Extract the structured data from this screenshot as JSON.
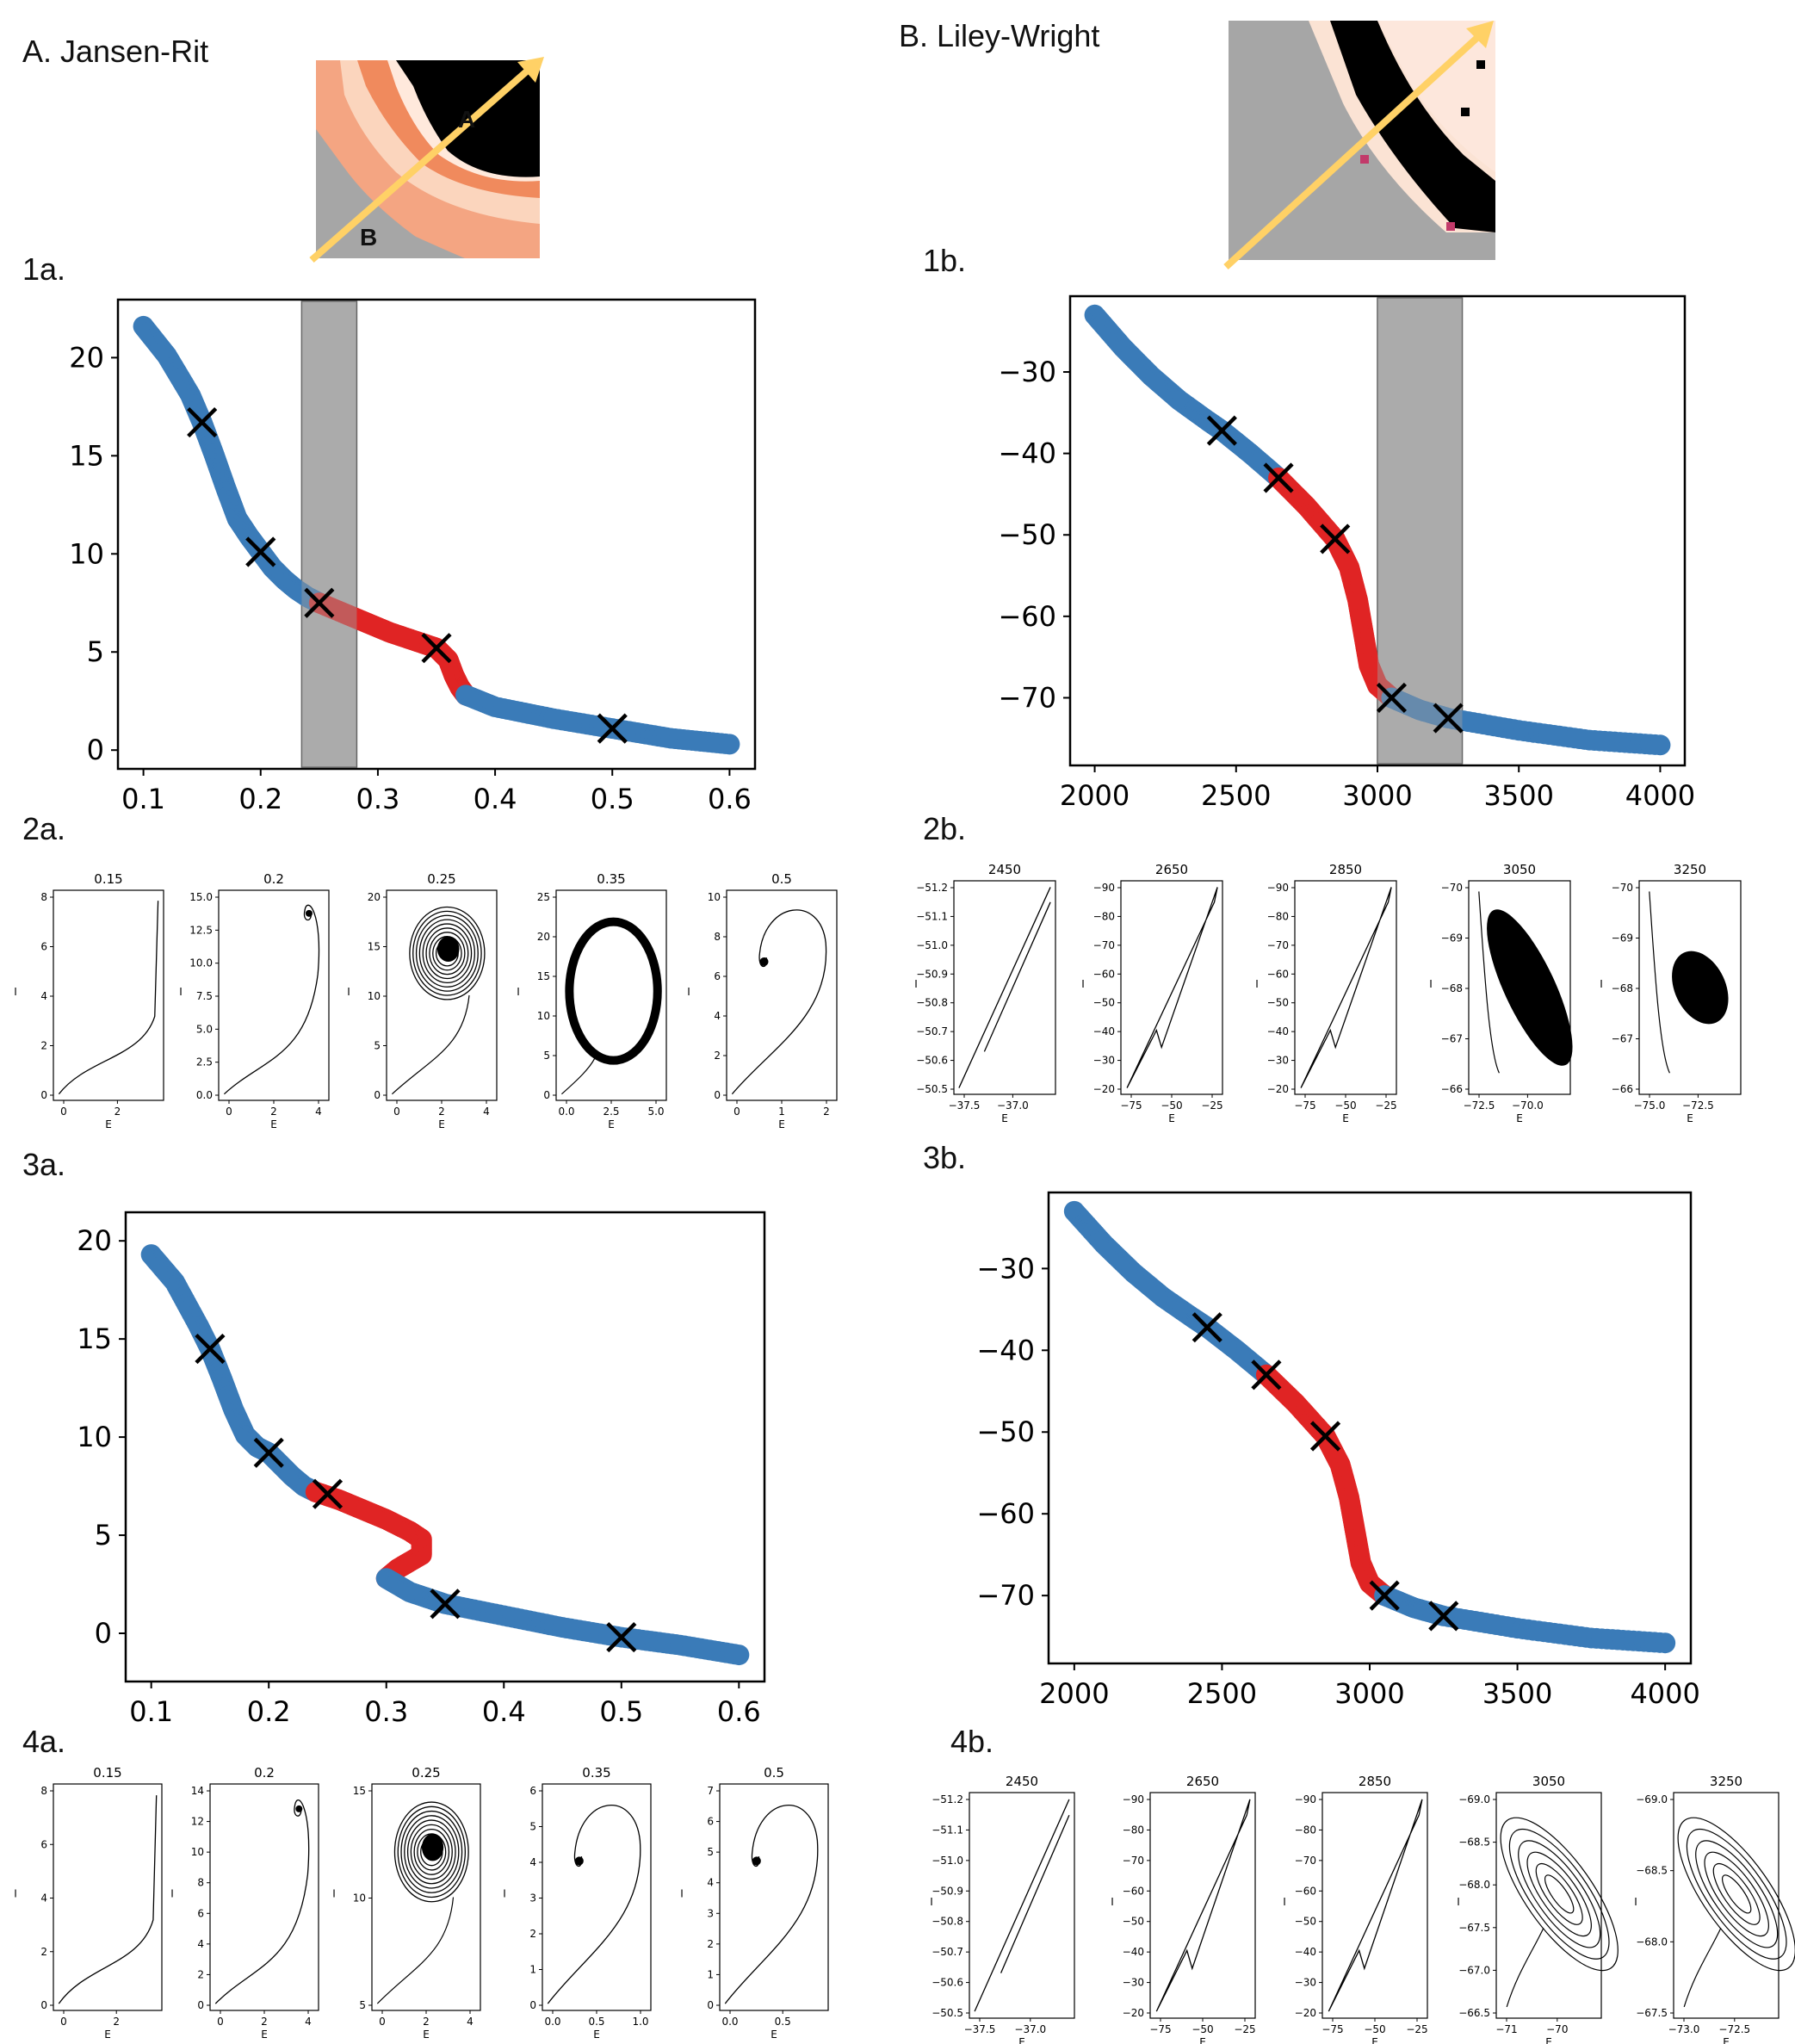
{
  "panel_titles": {
    "A": "A. Jansen-Rit",
    "B": "B. Liley-Wright"
  },
  "panel_labels": [
    "1a.",
    "2a.",
    "3a.",
    "4a.",
    "1b.",
    "2b.",
    "3b.",
    "4b."
  ],
  "heatmap_labels": [
    "A",
    "B"
  ],
  "colors": {
    "stable": "#3a7bb8",
    "unstable": "#e02424",
    "band": "#9e9e9e",
    "arrow": "#ffd166"
  },
  "chart_data": [
    {
      "id": "1a",
      "type": "scatter",
      "xlim": [
        0.1,
        0.6
      ],
      "ylim": [
        0,
        22
      ],
      "xticks": [
        "0.1",
        "0.2",
        "0.3",
        "0.4",
        "0.5",
        "0.6"
      ],
      "yticks": [
        "0",
        "5",
        "10",
        "15",
        "20"
      ],
      "band": [
        0.235,
        0.282
      ],
      "series": [
        {
          "color": "stable",
          "x": [
            0.1,
            0.12,
            0.14,
            0.15,
            0.16,
            0.17,
            0.18,
            0.19,
            0.2,
            0.21,
            0.22,
            0.23,
            0.24,
            0.25
          ],
          "y": [
            21.6,
            20.1,
            18.1,
            16.7,
            15.1,
            13.4,
            11.8,
            10.9,
            10.1,
            9.3,
            8.7,
            8.2,
            7.8,
            7.5
          ]
        },
        {
          "color": "unstable",
          "x": [
            0.25,
            0.27,
            0.29,
            0.31,
            0.33,
            0.35,
            0.36,
            0.365,
            0.37,
            0.375
          ],
          "y": [
            7.5,
            7.0,
            6.5,
            6.0,
            5.6,
            5.2,
            4.6,
            3.8,
            3.2,
            2.8
          ]
        },
        {
          "color": "stable",
          "x": [
            0.375,
            0.4,
            0.45,
            0.5,
            0.55,
            0.6
          ],
          "y": [
            2.8,
            2.2,
            1.6,
            1.1,
            0.6,
            0.3
          ]
        }
      ],
      "markers": {
        "x": [
          0.15,
          0.2,
          0.25,
          0.35,
          0.5
        ],
        "y": [
          16.7,
          10.1,
          7.5,
          5.2,
          1.1
        ]
      }
    },
    {
      "id": "1b",
      "type": "scatter",
      "xlim": [
        2000,
        4000
      ],
      "ylim": [
        -76,
        -23
      ],
      "xticks": [
        "2000",
        "2500",
        "3000",
        "3500",
        "4000"
      ],
      "yticks": [
        "-30",
        "-40",
        "-50",
        "-60",
        "-70"
      ],
      "band": [
        3000,
        3300
      ],
      "series": [
        {
          "color": "stable",
          "x": [
            2000,
            2100,
            2200,
            2300,
            2400,
            2450,
            2550,
            2650
          ],
          "y": [
            -23,
            -27,
            -30.5,
            -33.5,
            -36,
            -37.2,
            -40,
            -43
          ]
        },
        {
          "color": "unstable",
          "x": [
            2650,
            2750,
            2850,
            2900,
            2930,
            2950,
            2970,
            3000,
            3050
          ],
          "y": [
            -43,
            -46.5,
            -50.5,
            -54,
            -58,
            -62,
            -66,
            -68.5,
            -70
          ]
        },
        {
          "color": "stable",
          "x": [
            3050,
            3150,
            3250,
            3500,
            3750,
            4000
          ],
          "y": [
            -70,
            -71.5,
            -72.5,
            -74,
            -75.2,
            -75.8
          ]
        }
      ],
      "markers": {
        "x": [
          2450,
          2650,
          2850,
          3050,
          3250
        ],
        "y": [
          -37.2,
          -43,
          -50.5,
          -70,
          -72.5
        ]
      }
    },
    {
      "id": "3a",
      "type": "scatter",
      "xlim": [
        0.1,
        0.6
      ],
      "ylim": [
        -1.5,
        20.5
      ],
      "xticks": [
        "0.1",
        "0.2",
        "0.3",
        "0.4",
        "0.5",
        "0.6"
      ],
      "yticks": [
        "0",
        "5",
        "10",
        "15",
        "20"
      ],
      "series": [
        {
          "color": "stable",
          "x": [
            0.1,
            0.12,
            0.14,
            0.15,
            0.16,
            0.17,
            0.18,
            0.19,
            0.2,
            0.21,
            0.22,
            0.23,
            0.24
          ],
          "y": [
            19.3,
            17.9,
            15.7,
            14.5,
            13.0,
            11.4,
            10.1,
            9.5,
            9.2,
            8.6,
            8.0,
            7.5,
            7.2
          ]
        },
        {
          "color": "unstable",
          "x": [
            0.24,
            0.26,
            0.28,
            0.3,
            0.32,
            0.33,
            0.33,
            0.31,
            0.3
          ],
          "y": [
            7.2,
            6.8,
            6.3,
            5.8,
            5.2,
            4.8,
            4.0,
            3.3,
            2.8
          ]
        },
        {
          "color": "stable",
          "x": [
            0.3,
            0.32,
            0.35,
            0.4,
            0.45,
            0.5,
            0.55,
            0.6
          ],
          "y": [
            2.8,
            2.1,
            1.5,
            0.9,
            0.3,
            -0.2,
            -0.6,
            -1.1
          ]
        }
      ],
      "markers": {
        "x": [
          0.15,
          0.2,
          0.25,
          0.35,
          0.5
        ],
        "y": [
          14.5,
          9.2,
          7.1,
          1.5,
          -0.2
        ]
      }
    },
    {
      "id": "3b",
      "type": "scatter",
      "xlim": [
        2000,
        4000
      ],
      "ylim": [
        -76,
        -23
      ],
      "xticks": [
        "2000",
        "2500",
        "3000",
        "3500",
        "4000"
      ],
      "yticks": [
        "-30",
        "-40",
        "-50",
        "-60",
        "-70"
      ],
      "series": [
        {
          "color": "stable",
          "x": [
            2000,
            2100,
            2200,
            2300,
            2400,
            2450,
            2550,
            2650
          ],
          "y": [
            -23,
            -27,
            -30.5,
            -33.5,
            -36,
            -37.2,
            -40,
            -43
          ]
        },
        {
          "color": "unstable",
          "x": [
            2650,
            2750,
            2850,
            2900,
            2930,
            2950,
            2970,
            3000,
            3050
          ],
          "y": [
            -43,
            -46.5,
            -50.5,
            -54,
            -58,
            -62,
            -66,
            -68.5,
            -70
          ]
        },
        {
          "color": "stable",
          "x": [
            3050,
            3150,
            3250,
            3500,
            3750,
            4000
          ],
          "y": [
            -70,
            -71.5,
            -72.5,
            -74,
            -75.2,
            -75.8
          ]
        }
      ],
      "markers": {
        "x": [
          2450,
          2650,
          2850,
          3050,
          3250
        ],
        "y": [
          -37.2,
          -43,
          -50.5,
          -70,
          -72.5
        ]
      }
    }
  ],
  "phase_rows": [
    {
      "id": "2a",
      "xlabel": "E",
      "ylabel": "I",
      "plots": [
        {
          "title": "0.15",
          "kind": "rise",
          "yticks": [
            "0",
            "2",
            "4",
            "6",
            "8"
          ],
          "xticks": [
            "0",
            "2"
          ]
        },
        {
          "title": "0.2",
          "kind": "spiral",
          "yticks": [
            "0.0",
            "2.5",
            "5.0",
            "7.5",
            "10.0",
            "12.5",
            "15.0"
          ],
          "xticks": [
            "0",
            "2",
            "4"
          ]
        },
        {
          "title": "0.25",
          "kind": "cycle",
          "yticks": [
            "0",
            "5",
            "10",
            "15",
            "20"
          ],
          "xticks": [
            "0",
            "2",
            "4"
          ]
        },
        {
          "title": "0.35",
          "kind": "bigcycle",
          "yticks": [
            "0",
            "5",
            "10",
            "15",
            "20",
            "25"
          ],
          "xticks": [
            "0.0",
            "2.5",
            "5.0"
          ]
        },
        {
          "title": "0.5",
          "kind": "loop",
          "yticks": [
            "0",
            "2",
            "4",
            "6",
            "8",
            "10"
          ],
          "xticks": [
            "0",
            "1",
            "2"
          ]
        }
      ]
    },
    {
      "id": "2b",
      "xlabel": "E",
      "ylabel": "I",
      "plots": [
        {
          "title": "2450",
          "kind": "diag",
          "yticks": [
            "-50.5",
            "-50.6",
            "-50.7",
            "-50.8",
            "-50.9",
            "-51.0",
            "-51.1",
            "-51.2"
          ],
          "xticks": [
            "-37.5",
            "-37.0"
          ]
        },
        {
          "title": "2650",
          "kind": "diag2",
          "yticks": [
            "-20",
            "-30",
            "-40",
            "-50",
            "-60",
            "-70",
            "-80",
            "-90"
          ],
          "xticks": [
            "-75",
            "-50",
            "-25"
          ]
        },
        {
          "title": "2850",
          "kind": "diag2",
          "yticks": [
            "-20",
            "-30",
            "-40",
            "-50",
            "-60",
            "-70",
            "-80",
            "-90"
          ],
          "xticks": [
            "-75",
            "-50",
            "-25"
          ]
        },
        {
          "title": "3050",
          "kind": "chaos",
          "yticks": [
            "-66",
            "-67",
            "-68",
            "-69",
            "-70"
          ],
          "xticks": [
            "-72.5",
            "-70.0"
          ]
        },
        {
          "title": "3250",
          "kind": "chaos2",
          "yticks": [
            "-66",
            "-67",
            "-68",
            "-69",
            "-70"
          ],
          "xticks": [
            "-75.0",
            "-72.5"
          ]
        }
      ]
    },
    {
      "id": "4a",
      "xlabel": "E",
      "ylabel": "I",
      "plots": [
        {
          "title": "0.15",
          "kind": "rise",
          "yticks": [
            "0",
            "2",
            "4",
            "6",
            "8"
          ],
          "xticks": [
            "0",
            "2"
          ]
        },
        {
          "title": "0.2",
          "kind": "spiral",
          "yticks": [
            "0",
            "2",
            "4",
            "6",
            "8",
            "10",
            "12",
            "14"
          ],
          "xticks": [
            "0",
            "2",
            "4"
          ]
        },
        {
          "title": "0.25",
          "kind": "cycle2",
          "yticks": [
            "5",
            "10",
            "15"
          ],
          "xticks": [
            "0",
            "2",
            "4"
          ]
        },
        {
          "title": "0.35",
          "kind": "loop",
          "yticks": [
            "0",
            "1",
            "2",
            "3",
            "4",
            "5",
            "6"
          ],
          "xticks": [
            "0.0",
            "0.5",
            "1.0"
          ]
        },
        {
          "title": "0.5",
          "kind": "loop",
          "yticks": [
            "0",
            "1",
            "2",
            "3",
            "4",
            "5",
            "6",
            "7"
          ],
          "xticks": [
            "0.0",
            "0.5"
          ]
        }
      ]
    },
    {
      "id": "4b",
      "xlabel": "E",
      "ylabel": "I",
      "plots": [
        {
          "title": "2450",
          "kind": "diag",
          "yticks": [
            "-50.5",
            "-50.6",
            "-50.7",
            "-50.8",
            "-50.9",
            "-51.0",
            "-51.1",
            "-51.2"
          ],
          "xticks": [
            "-37.5",
            "-37.0"
          ]
        },
        {
          "title": "2650",
          "kind": "diag2",
          "yticks": [
            "-20",
            "-30",
            "-40",
            "-50",
            "-60",
            "-70",
            "-80",
            "-90"
          ],
          "xticks": [
            "-75",
            "-50",
            "-25"
          ]
        },
        {
          "title": "2850",
          "kind": "diag2",
          "yticks": [
            "-20",
            "-30",
            "-40",
            "-50",
            "-60",
            "-70",
            "-80",
            "-90"
          ],
          "xticks": [
            "-75",
            "-50",
            "-25"
          ]
        },
        {
          "title": "3050",
          "kind": "ellipse",
          "yticks": [
            "-66.5",
            "-67.0",
            "-67.5",
            "-68.0",
            "-68.5",
            "-69.0"
          ],
          "xticks": [
            "-71",
            "-70"
          ]
        },
        {
          "title": "3250",
          "kind": "ellipse",
          "yticks": [
            "-67.5",
            "-68.0",
            "-68.5",
            "-69.0"
          ],
          "xticks": [
            "-73.0",
            "-72.5"
          ]
        }
      ]
    }
  ]
}
